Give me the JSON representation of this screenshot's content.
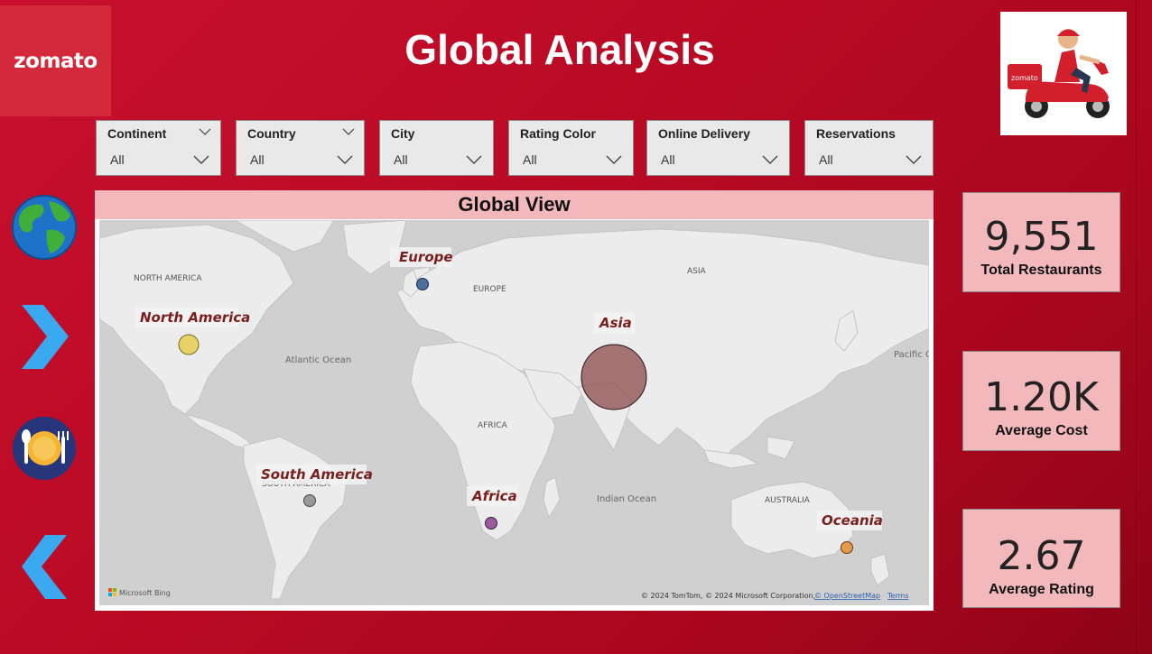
{
  "brand": {
    "name": "zomato"
  },
  "title": "Global Analysis",
  "filters": [
    {
      "label": "Continent",
      "value": "All"
    },
    {
      "label": "Country",
      "value": "All"
    },
    {
      "label": "City",
      "value": "All"
    },
    {
      "label": "Rating Color",
      "value": "All"
    },
    {
      "label": "Online Delivery",
      "value": "All"
    },
    {
      "label": "Reservations",
      "value": "All"
    }
  ],
  "map": {
    "title": "Global View",
    "regions": [
      "North America",
      "Europe",
      "Asia",
      "South America",
      "Africa",
      "Oceania"
    ],
    "base_labels": [
      "NORTH AMERICA",
      "EUROPE",
      "ASIA",
      "Atlantic Ocean",
      "AFRICA",
      "Pacific O",
      "SOUTH AMERICA",
      "Indian Ocean",
      "AUSTRALIA"
    ],
    "attribution": {
      "bing": "Microsoft Bing",
      "copyright": "© 2024 TomTom, © 2024 Microsoft Corporation,",
      "osm": "© OpenStreetMap",
      "terms": "Terms"
    }
  },
  "kpis": [
    {
      "value": "9,551",
      "label": "Total Restaurants"
    },
    {
      "value": "1.20K",
      "label": "Average Cost"
    },
    {
      "value": "2.67",
      "label": "Average Rating"
    }
  ],
  "colors": {
    "background": "#c8102e",
    "card_pink": "#f2b8bc",
    "north_america_bubble": "#e8d36a",
    "europe_bubble": "#4d6f9e",
    "asia_bubble": "#8b4b4b",
    "south_america_bubble": "#9a9a9a",
    "africa_bubble": "#9b5aa0",
    "oceania_bubble": "#e89a4c"
  },
  "icons": [
    "globe-icon",
    "chevron-right-icon",
    "dining-plate-icon",
    "chevron-left-icon"
  ]
}
